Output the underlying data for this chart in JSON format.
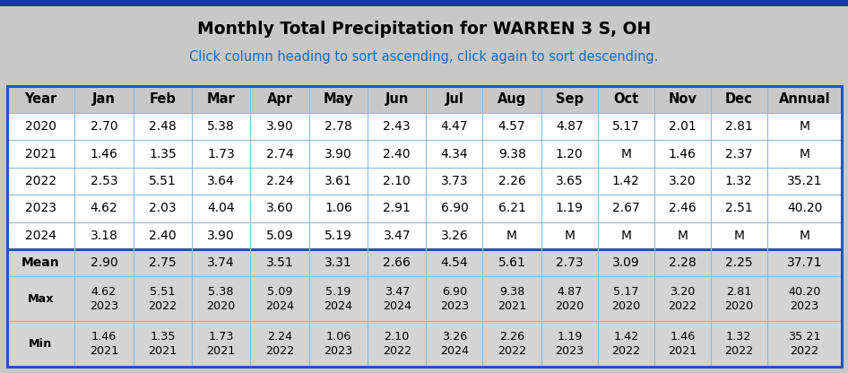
{
  "title": "Monthly Total Precipitation for WARREN 3 S, OH",
  "subtitle": "Click column heading to sort ascending, click again to sort descending.",
  "title_color": "#000000",
  "subtitle_color": "#1a6bbf",
  "background_color": "#c8c8c8",
  "table_bg": "#ffffff",
  "stat_bg": "#d4d4d4",
  "thick_border_color": "#2255bb",
  "thin_border_color": "#88bbdd",
  "top_bar_color": "#1a3a99",
  "columns": [
    "Year",
    "Jan",
    "Feb",
    "Mar",
    "Apr",
    "May",
    "Jun",
    "Jul",
    "Aug",
    "Sep",
    "Oct",
    "Nov",
    "Dec",
    "Annual"
  ],
  "rows": [
    [
      "2020",
      "2.70",
      "2.48",
      "5.38",
      "3.90",
      "2.78",
      "2.43",
      "4.47",
      "4.57",
      "4.87",
      "5.17",
      "2.01",
      "2.81",
      "M"
    ],
    [
      "2021",
      "1.46",
      "1.35",
      "1.73",
      "2.74",
      "3.90",
      "2.40",
      "4.34",
      "9.38",
      "1.20",
      "M",
      "1.46",
      "2.37",
      "M"
    ],
    [
      "2022",
      "2.53",
      "5.51",
      "3.64",
      "2.24",
      "3.61",
      "2.10",
      "3.73",
      "2.26",
      "3.65",
      "1.42",
      "3.20",
      "1.32",
      "35.21"
    ],
    [
      "2023",
      "4.62",
      "2.03",
      "4.04",
      "3.60",
      "1.06",
      "2.91",
      "6.90",
      "6.21",
      "1.19",
      "2.67",
      "2.46",
      "2.51",
      "40.20"
    ],
    [
      "2024",
      "3.18",
      "2.40",
      "3.90",
      "5.09",
      "5.19",
      "3.47",
      "3.26",
      "M",
      "M",
      "M",
      "M",
      "M",
      "M"
    ]
  ],
  "mean_row": [
    "Mean",
    "2.90",
    "2.75",
    "3.74",
    "3.51",
    "3.31",
    "2.66",
    "4.54",
    "5.61",
    "2.73",
    "3.09",
    "2.28",
    "2.25",
    "37.71"
  ],
  "max_row": [
    "Max",
    "4.62\n2023",
    "5.51\n2022",
    "5.38\n2020",
    "5.09\n2024",
    "5.19\n2024",
    "3.47\n2024",
    "6.90\n2023",
    "9.38\n2021",
    "4.87\n2020",
    "5.17\n2020",
    "3.20\n2022",
    "2.81\n2020",
    "40.20\n2023"
  ],
  "min_row": [
    "Min",
    "1.46\n2021",
    "1.35\n2021",
    "1.73\n2021",
    "2.24\n2022",
    "1.06\n2023",
    "2.10\n2022",
    "3.26\n2024",
    "2.26\n2022",
    "1.19\n2023",
    "1.42\n2022",
    "1.46\n2021",
    "1.32\n2022",
    "35.21\n2022"
  ],
  "col_props": [
    0.95,
    0.82,
    0.82,
    0.82,
    0.82,
    0.82,
    0.82,
    0.79,
    0.82,
    0.79,
    0.79,
    0.79,
    0.79,
    1.05
  ],
  "figsize": [
    9.46,
    4.16
  ],
  "dpi": 100
}
